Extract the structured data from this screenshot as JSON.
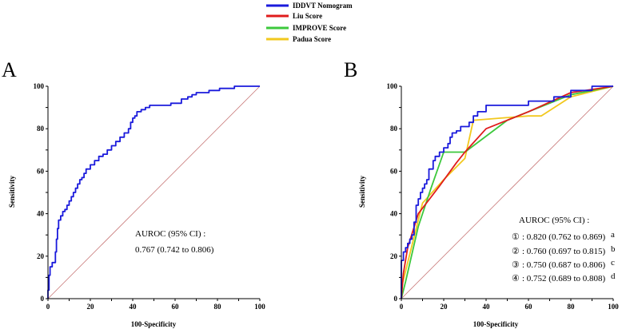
{
  "legend": [
    {
      "label": "IDDVT Nomogram",
      "color": "#1a1adc"
    },
    {
      "label": "Liu Score",
      "color": "#e01c1c"
    },
    {
      "label": "IMPROVE Score",
      "color": "#3cc83c"
    },
    {
      "label": "Padua  Score",
      "color": "#f2c81e"
    }
  ],
  "chart_data": [
    {
      "type": "line",
      "panel_label": "A",
      "title": "",
      "xlabel": "100-Specificity",
      "ylabel": "Sensitivity",
      "xlim": [
        0,
        100
      ],
      "ylim": [
        0,
        100
      ],
      "xticks": [
        "0",
        "20",
        "40",
        "60",
        "80",
        "100"
      ],
      "yticks": [
        "0",
        "20",
        "40",
        "60",
        "80",
        "100"
      ],
      "reference_line": {
        "color": "#c87878",
        "x": [
          0,
          100
        ],
        "y": [
          0,
          100
        ]
      },
      "series": [
        {
          "name": "IDDVT Nomogram",
          "color": "#1a1adc",
          "x": [
            0,
            0,
            0.5,
            0.5,
            1,
            1,
            2,
            2,
            3.5,
            3.5,
            4,
            4,
            4.5,
            4.5,
            5,
            5,
            6,
            6,
            7,
            7,
            8,
            8,
            9,
            9,
            10,
            10,
            11,
            11,
            12,
            12,
            13,
            13,
            14,
            14,
            15,
            15,
            16,
            16,
            17,
            17,
            18,
            18,
            20,
            20,
            22,
            22,
            24,
            24,
            26,
            26,
            28,
            28,
            30,
            30,
            32,
            32,
            34,
            34,
            36,
            36,
            38,
            38,
            39,
            39,
            40,
            40,
            41,
            41,
            42,
            42,
            44,
            44,
            46,
            46,
            48,
            48,
            50,
            50,
            52,
            52,
            58,
            58,
            63,
            63,
            66,
            66,
            68,
            68,
            70,
            70,
            76,
            76,
            81,
            81,
            88,
            88,
            95,
            100
          ],
          "y": [
            0,
            4,
            4,
            11,
            11,
            15,
            15,
            17,
            17,
            22,
            22,
            28,
            28,
            33,
            33,
            37,
            37,
            39,
            39,
            41,
            41,
            42,
            42,
            44,
            44,
            46,
            46,
            48,
            48,
            50,
            50,
            52,
            52,
            54,
            54,
            56,
            56,
            57,
            57,
            59,
            59,
            61,
            61,
            63,
            63,
            65,
            65,
            67,
            67,
            68,
            68,
            70,
            70,
            72,
            72,
            74,
            74,
            76,
            76,
            78,
            78,
            80,
            80,
            83,
            83,
            85,
            85,
            86,
            86,
            88,
            88,
            89,
            89,
            90,
            90,
            91,
            91,
            91,
            91,
            91,
            91,
            92,
            92,
            94,
            94,
            95,
            95,
            96,
            96,
            97,
            97,
            98,
            98,
            99,
            99,
            100,
            100,
            100
          ]
        }
      ],
      "annotation": {
        "header": "AUROC (95% CI) :",
        "lines": [
          {
            "text": "0.767 (0.742 to 0.806)",
            "sup": ""
          }
        ]
      }
    },
    {
      "type": "line",
      "panel_label": "B",
      "title": "",
      "xlabel": "100-Specificity",
      "ylabel": "Sensitivity",
      "xlim": [
        0,
        100
      ],
      "ylim": [
        0,
        100
      ],
      "xticks": [
        "0",
        "20",
        "40",
        "60",
        "80",
        "100"
      ],
      "yticks": [
        "0",
        "20",
        "40",
        "60",
        "80",
        "100"
      ],
      "reference_line": {
        "color": "#c87878",
        "x": [
          0,
          100
        ],
        "y": [
          0,
          100
        ]
      },
      "series": [
        {
          "name": "Padua  Score",
          "color": "#f2c81e",
          "x": [
            0,
            10,
            20,
            30,
            34,
            60,
            66,
            80,
            100
          ],
          "y": [
            5,
            45,
            56,
            66,
            84,
            86,
            86,
            95,
            100
          ]
        },
        {
          "name": "IMPROVE Score",
          "color": "#3cc83c",
          "x": [
            0,
            2,
            8,
            14,
            20,
            30,
            50,
            80,
            100
          ],
          "y": [
            0,
            8,
            34,
            52,
            69,
            69,
            84,
            96,
            100
          ]
        },
        {
          "name": "Liu Score",
          "color": "#e01c1c",
          "x": [
            0,
            1,
            3,
            8,
            18,
            26,
            30,
            40,
            60,
            80,
            100
          ],
          "y": [
            0,
            12,
            24,
            40,
            53,
            64,
            69,
            80,
            88,
            97,
            100
          ]
        },
        {
          "name": "IDDVT Nomogram",
          "color": "#1a1adc",
          "x": [
            0,
            0,
            1,
            1,
            2,
            2,
            3,
            3,
            4,
            4,
            5,
            5,
            6,
            6,
            7,
            7,
            8,
            8,
            9,
            9,
            10,
            10,
            11,
            11,
            12,
            12,
            13,
            13,
            15,
            15,
            16,
            16,
            18,
            18,
            20,
            20,
            22,
            22,
            23,
            23,
            24,
            24,
            26,
            26,
            28,
            28,
            32,
            32,
            34,
            34,
            36,
            36,
            40,
            40,
            60,
            60,
            72,
            72,
            80,
            80,
            90,
            90,
            100
          ],
          "y": [
            0,
            18,
            18,
            22,
            22,
            24,
            24,
            26,
            26,
            28,
            28,
            30,
            30,
            36,
            36,
            44,
            44,
            47,
            47,
            50,
            50,
            52,
            52,
            54,
            54,
            56,
            56,
            61,
            61,
            65,
            65,
            67,
            67,
            69,
            69,
            71,
            71,
            73,
            73,
            76,
            76,
            78,
            78,
            79,
            79,
            81,
            81,
            83,
            83,
            86,
            86,
            88,
            88,
            91,
            91,
            93,
            93,
            95,
            95,
            98,
            98,
            100,
            100
          ]
        }
      ],
      "annotation": {
        "header": "AUROC (95% CI) :",
        "lines": [
          {
            "marker": "①",
            "text": ": 0.820 (0.762 to 0.869)",
            "sup": "a"
          },
          {
            "marker": "②",
            "text": ": 0.760 (0.697 to 0.815)",
            "sup": "b"
          },
          {
            "marker": "③",
            "text": ": 0.750 (0.687 to 0.806)",
            "sup": "c"
          },
          {
            "marker": "④",
            "text": ": 0.752 (0.689 to 0.808)",
            "sup": "d"
          }
        ]
      }
    }
  ]
}
